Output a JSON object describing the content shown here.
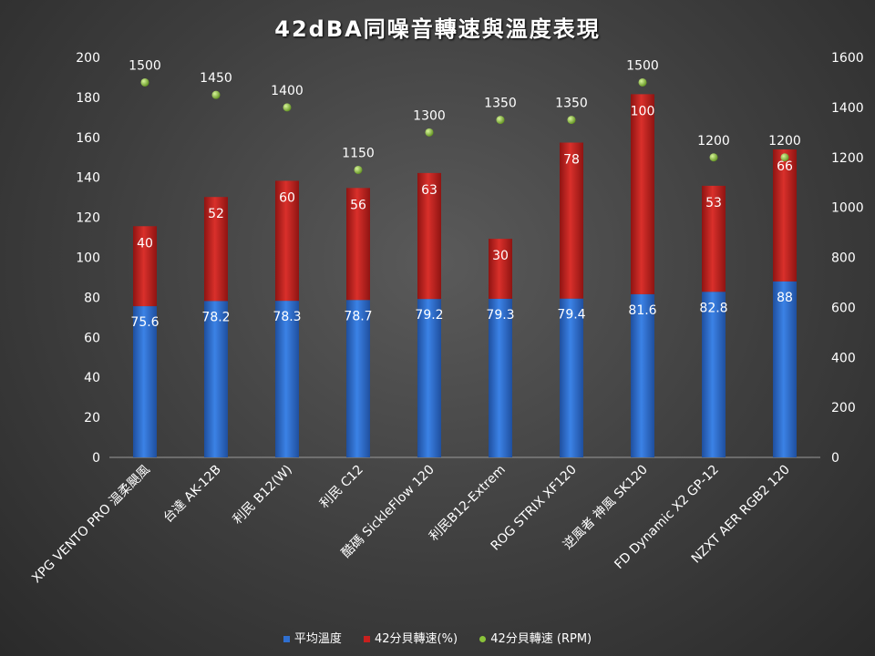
{
  "chart_data": {
    "type": "bar",
    "title": "42dBA同噪音轉速與溫度表現",
    "categories": [
      "XPG VENTO PRO 温柔颶風",
      "台達 AK-12B",
      "利民 B12(W)",
      "利民 C12",
      "酷碼 SickleFlow 120",
      "利民B12-Extrem",
      "ROG STRIX XF120",
      "逆風者 神風 SK120",
      "FD Dynamic X2 GP-12",
      "NZXT AER RGB2 120"
    ],
    "series": [
      {
        "name": "平均溫度",
        "type": "bar",
        "stacked": true,
        "axis": "left",
        "color": "#2f6fd0",
        "values": [
          75.6,
          78.2,
          78.3,
          78.7,
          79.2,
          79.3,
          79.4,
          81.6,
          82.8,
          88
        ]
      },
      {
        "name": "42分貝轉速(%)",
        "type": "bar",
        "stacked": true,
        "axis": "left",
        "color": "#c8201e",
        "values": [
          40,
          52,
          60,
          56,
          63,
          30,
          78,
          100,
          53,
          66
        ]
      },
      {
        "name": "42分貝轉速 (RPM)",
        "type": "scatter",
        "axis": "right",
        "color": "#8ac33a",
        "values": [
          1500,
          1450,
          1400,
          1150,
          1300,
          1350,
          1350,
          1500,
          1200,
          1200
        ]
      }
    ],
    "ylim": [
      0,
      200
    ],
    "yticks": [
      0,
      20,
      40,
      60,
      80,
      100,
      120,
      140,
      160,
      180,
      200
    ],
    "y2lim": [
      0,
      1600
    ],
    "y2ticks": [
      0,
      200,
      400,
      600,
      800,
      1000,
      1200,
      1400,
      1600
    ],
    "grid": false,
    "legend_position": "bottom"
  }
}
